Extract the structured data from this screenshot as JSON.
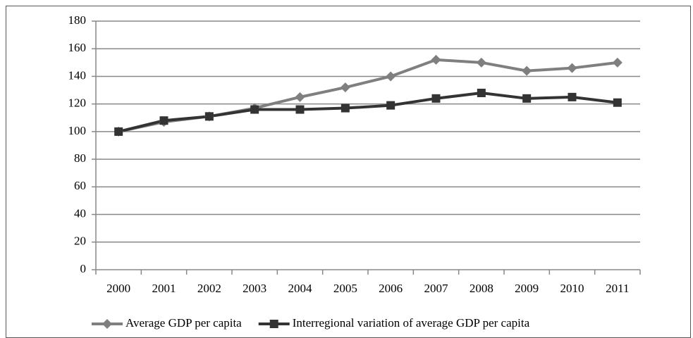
{
  "chart_data": {
    "type": "line",
    "categories": [
      "2000",
      "2001",
      "2002",
      "2003",
      "2004",
      "2005",
      "2006",
      "2007",
      "2008",
      "2009",
      "2010",
      "2011"
    ],
    "series": [
      {
        "name": "Average GDP per capita",
        "color": "#7f7f7f",
        "marker": "diamond",
        "values": [
          100,
          107,
          111,
          117,
          125,
          132,
          140,
          152,
          150,
          144,
          146,
          150
        ]
      },
      {
        "name": "Interregional variation of average GDP per capita",
        "color": "#333333",
        "marker": "square",
        "values": [
          100,
          108,
          111,
          116,
          116,
          117,
          119,
          124,
          128,
          124,
          125,
          121
        ]
      }
    ],
    "ylim": [
      0,
      180
    ],
    "yticks": [
      0,
      20,
      40,
      60,
      80,
      100,
      120,
      140,
      160,
      180
    ],
    "grid": true,
    "legend": "bottom"
  }
}
